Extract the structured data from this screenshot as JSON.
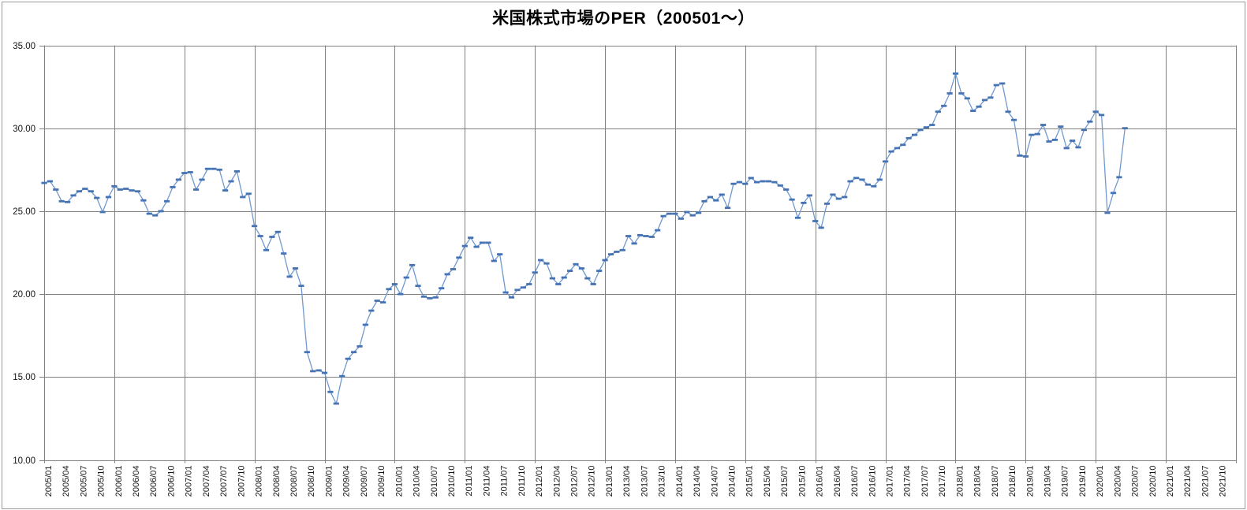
{
  "title": "米国株式市場のPER（200501～）",
  "colors": {
    "line": "#7099cf",
    "marker": "#4673b4",
    "grid": "#808080",
    "axis_text": "#141414",
    "frame_border": "#9a9a9a",
    "background": "#ffffff"
  },
  "chart_data": {
    "type": "line",
    "title": "米国株式市場のPER（200501～）",
    "xlabel": "",
    "ylabel": "",
    "grid": true,
    "legend_position": "none",
    "marker_style": "horizontal-dash",
    "ylim": [
      10,
      35
    ],
    "y_tick_labels": [
      "10.00",
      "15.00",
      "20.00",
      "25.00",
      "30.00",
      "35.00"
    ],
    "y_tick_values": [
      10,
      15,
      20,
      25,
      30,
      35
    ],
    "x_start_month": "2005/01",
    "x_axis_end_month": "2022/01",
    "x_frequency": "monthly",
    "x_tick_labels": [
      "2005/01",
      "2005/04",
      "2005/07",
      "2005/10",
      "2006/01",
      "2006/04",
      "2006/07",
      "2006/10",
      "2007/01",
      "2007/04",
      "2007/07",
      "2007/10",
      "2008/01",
      "2008/04",
      "2008/07",
      "2008/10",
      "2009/01",
      "2009/04",
      "2009/07",
      "2009/10",
      "2010/01",
      "2010/04",
      "2010/07",
      "2010/10",
      "2011/01",
      "2011/04",
      "2011/07",
      "2011/10",
      "2012/01",
      "2012/04",
      "2012/07",
      "2012/10",
      "2013/01",
      "2013/04",
      "2013/07",
      "2013/10",
      "2014/01",
      "2014/04",
      "2014/07",
      "2014/10",
      "2015/01",
      "2015/04",
      "2015/07",
      "2015/10",
      "2016/01",
      "2016/04",
      "2016/07",
      "2016/10",
      "2017/01",
      "2017/04",
      "2017/07",
      "2017/10",
      "2018/01",
      "2018/04",
      "2018/07",
      "2018/10",
      "2019/01",
      "2019/04",
      "2019/07",
      "2019/10",
      "2020/01",
      "2020/04",
      "2020/07",
      "2020/10",
      "2021/01",
      "2021/04",
      "2021/07",
      "2021/10"
    ],
    "series": [
      {
        "name": "米国株式市場のPER",
        "first_month": "2005/01",
        "last_month": "2020/06",
        "values": [
          26.7,
          26.8,
          26.3,
          25.6,
          25.55,
          25.95,
          26.2,
          26.35,
          26.2,
          25.8,
          24.95,
          25.85,
          26.5,
          26.3,
          26.35,
          26.25,
          26.2,
          25.65,
          24.85,
          24.75,
          25.0,
          25.6,
          26.45,
          26.9,
          27.3,
          27.35,
          26.3,
          26.9,
          27.55,
          27.55,
          27.5,
          26.25,
          26.8,
          27.4,
          25.85,
          26.05,
          24.1,
          23.5,
          22.65,
          23.45,
          23.75,
          22.45,
          21.05,
          21.55,
          20.5,
          16.5,
          15.35,
          15.4,
          15.25,
          14.1,
          13.4,
          15.05,
          16.1,
          16.5,
          16.85,
          18.15,
          19.0,
          19.6,
          19.5,
          20.3,
          20.6,
          20.0,
          21.0,
          21.75,
          20.5,
          19.85,
          19.75,
          19.8,
          20.35,
          21.2,
          21.5,
          22.2,
          22.9,
          23.4,
          22.85,
          23.1,
          23.1,
          22.0,
          22.4,
          20.1,
          19.8,
          20.25,
          20.4,
          20.6,
          21.3,
          22.05,
          21.85,
          20.95,
          20.6,
          21.0,
          21.4,
          21.8,
          21.55,
          20.95,
          20.6,
          21.4,
          22.05,
          22.4,
          22.55,
          22.65,
          23.5,
          23.05,
          23.55,
          23.5,
          23.45,
          23.85,
          24.7,
          24.85,
          24.85,
          24.55,
          24.95,
          24.75,
          24.9,
          25.6,
          25.85,
          25.65,
          26.0,
          25.2,
          26.65,
          26.75,
          26.65,
          27.0,
          26.75,
          26.8,
          26.8,
          26.75,
          26.55,
          26.3,
          25.7,
          24.6,
          25.5,
          25.95,
          24.4,
          24.0,
          25.45,
          26.0,
          25.75,
          25.85,
          26.8,
          27.0,
          26.9,
          26.6,
          26.5,
          26.9,
          28.0,
          28.6,
          28.8,
          29.0,
          29.4,
          29.6,
          29.9,
          30.05,
          30.2,
          31.0,
          31.35,
          32.1,
          33.3,
          32.1,
          31.8,
          31.05,
          31.3,
          31.7,
          31.85,
          32.6,
          32.7,
          31.0,
          30.5,
          28.35,
          28.3,
          29.6,
          29.65,
          30.2,
          29.2,
          29.3,
          30.1,
          28.8,
          29.25,
          28.85,
          29.9,
          30.4,
          31.0,
          30.8,
          24.9,
          26.1,
          27.05,
          30.0
        ]
      }
    ]
  }
}
